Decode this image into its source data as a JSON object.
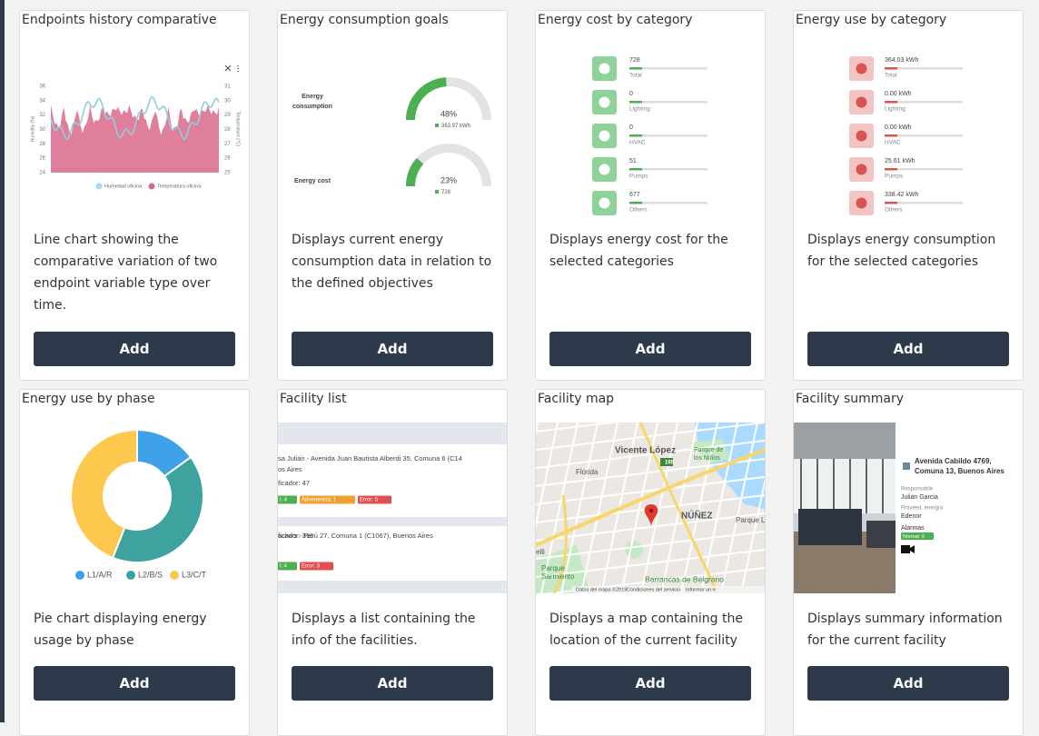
{
  "cards": [
    {
      "title": "Endpoints history comparative",
      "description": "Line chart showing the comparative variation of two endpoint variable type over time.",
      "button": "Add",
      "preview": {
        "left_ticks": [
          "36",
          "34",
          "32",
          "30",
          "28",
          "26",
          "24"
        ],
        "right_ticks": [
          "31",
          "30",
          "29",
          "28",
          "27",
          "26",
          "25"
        ],
        "left_axis": "Humidity (%)",
        "right_axis": "Temperature (°C)",
        "legend": [
          "Humedad oficina",
          "Temperatura oficina"
        ]
      }
    },
    {
      "title": "Energy consumption goals",
      "description": "Displays current energy consumption data in relation to the defined objectives",
      "button": "Add",
      "preview": {
        "gauges": [
          {
            "label": "Energy consumption",
            "percent": 48,
            "percent_label": "48%",
            "detail": "363.97 kWh"
          },
          {
            "label": "Energy cost",
            "percent": 23,
            "percent_label": "23%",
            "detail": "728"
          }
        ]
      }
    },
    {
      "title": "Energy cost by category",
      "description": "Displays energy cost for the selected categories",
      "button": "Add",
      "preview": {
        "rows": [
          {
            "value": "728",
            "label": "Total"
          },
          {
            "value": "0",
            "label": "Lighting"
          },
          {
            "value": "0",
            "label": "HVAC"
          },
          {
            "value": "51",
            "label": "Pumps"
          },
          {
            "value": "677",
            "label": "Others"
          }
        ]
      }
    },
    {
      "title": "Energy use by category",
      "description": "Displays energy consumption for the selected categories",
      "button": "Add",
      "preview": {
        "rows": [
          {
            "value": "364.03 kWh",
            "label": "Total"
          },
          {
            "value": "0.00 kWh",
            "label": "Lighting"
          },
          {
            "value": "0.00 kWh",
            "label": "HVAC"
          },
          {
            "value": "25.61 kWh",
            "label": "Pumps"
          },
          {
            "value": "338.42 kWh",
            "label": "Others"
          }
        ]
      }
    },
    {
      "title": "Energy use by phase",
      "description": "Pie chart displaying energy usage by phase",
      "button": "Add",
      "preview": {
        "series": [
          {
            "name": "L1/A/R",
            "value": 15,
            "color": "#3fa2e8"
          },
          {
            "name": "L2/B/S",
            "value": 41,
            "color": "#3ea39f"
          },
          {
            "name": "L3/C/T",
            "value": 44,
            "color": "#fcc94e"
          }
        ]
      }
    },
    {
      "title": "Facility list",
      "description": "Displays a list containing the info of the facilities.",
      "button": "Add",
      "preview": {
        "items": [
          {
            "lines": [
              "sa Julián - Avenida Juan Bautista Alberdi    35, Comuna 6 (C14",
              "os Aires",
              "ficador: 47"
            ],
            "badges": [
              "l: 4",
              "Advertencia: 1",
              "Error: 5"
            ]
          },
          {
            "lines": [
              "acho's - Perú   27, Comuna 1 (C1067), Buenos Aires",
              "ficador: 316"
            ],
            "badges": [
              "l: 4",
              "Error: 3"
            ]
          }
        ]
      }
    },
    {
      "title": "Facility map",
      "description": "Displays a map containing the location of the current facility",
      "button": "Add",
      "preview": {
        "labels": [
          "Vicente López",
          "Parque de los Niños",
          "Florida",
          "NÚÑEZ",
          "Parque L",
          "elli",
          "Parque Sarmiento",
          "Barrancas de Belgrano",
          "195"
        ],
        "footer": [
          "Datos del mapa ©2019",
          "Condiciones del servicio",
          "Informar un e"
        ]
      }
    },
    {
      "title": "Facility summary",
      "description": "Displays summary information for the current facility",
      "button": "Add",
      "preview": {
        "address": "Avenida Cabildo 4769, Comuna 13, Buenos Aires",
        "fields": [
          "Responsable",
          "Julian Garcia",
          "Proveed. energía",
          "Edenor",
          "Alarmas"
        ],
        "badge": "Normal: 9"
      }
    }
  ]
}
